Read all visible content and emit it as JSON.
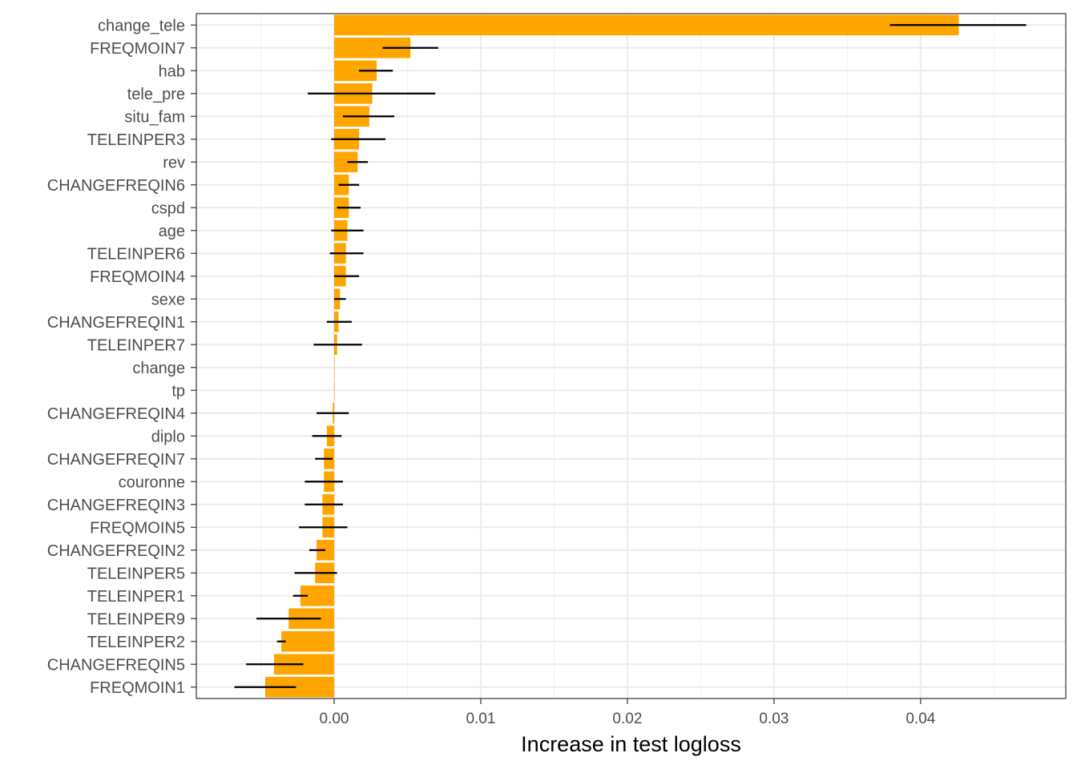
{
  "chart_data": {
    "type": "bar",
    "orientation": "horizontal",
    "title": "",
    "xlabel": "Increase in test logloss",
    "ylabel": "",
    "xlim": [
      -0.0094,
      0.0499
    ],
    "x_ticks": [
      0.0,
      0.01,
      0.02,
      0.03,
      0.04
    ],
    "x_tick_labels": [
      "0.00",
      "0.01",
      "0.02",
      "0.03",
      "0.04"
    ],
    "grid": true,
    "bar_color": "#FFA500",
    "error_bar_color": "#000000",
    "categories": [
      "change_tele",
      "FREQMOIN7",
      "hab",
      "tele_pre",
      "situ_fam",
      "TELEINPER3",
      "rev",
      "CHANGEFREQIN6",
      "cspd",
      "age",
      "TELEINPER6",
      "FREQMOIN4",
      "sexe",
      "CHANGEFREQIN1",
      "TELEINPER7",
      "change",
      "tp",
      "CHANGEFREQIN4",
      "diplo",
      "CHANGEFREQIN7",
      "couronne",
      "CHANGEFREQIN3",
      "FREQMOIN5",
      "CHANGEFREQIN2",
      "TELEINPER5",
      "TELEINPER1",
      "TELEINPER9",
      "TELEINPER2",
      "CHANGEFREQIN5",
      "FREQMOIN1"
    ],
    "values": [
      0.0426,
      0.0052,
      0.0029,
      0.0026,
      0.0024,
      0.0017,
      0.0016,
      0.001,
      0.001,
      0.0009,
      0.0008,
      0.0008,
      0.0004,
      0.0003,
      0.0002,
      0.0,
      0.0,
      -0.0001,
      -0.0005,
      -0.0007,
      -0.0007,
      -0.0008,
      -0.0008,
      -0.0012,
      -0.0013,
      -0.0023,
      -0.0031,
      -0.0036,
      -0.0041,
      -0.0047
    ],
    "error_low": [
      0.0379,
      0.0033,
      0.0017,
      -0.0018,
      0.0006,
      -0.0002,
      0.0009,
      0.0003,
      0.0002,
      -0.0002,
      -0.0003,
      0.0,
      0.0,
      -0.0005,
      -0.0014,
      0.0,
      0.0,
      -0.0012,
      -0.0015,
      -0.0013,
      -0.002,
      -0.002,
      -0.0024,
      -0.0017,
      -0.0027,
      -0.0028,
      -0.0053,
      -0.0039,
      -0.006,
      -0.0068
    ],
    "error_high": [
      0.0472,
      0.0071,
      0.004,
      0.0069,
      0.0041,
      0.0035,
      0.0023,
      0.0017,
      0.0018,
      0.002,
      0.002,
      0.0017,
      0.0008,
      0.0012,
      0.0019,
      0.0,
      0.0,
      0.001,
      0.0005,
      -0.0001,
      0.0006,
      0.0006,
      0.0009,
      -0.0006,
      0.0002,
      -0.0018,
      -0.0009,
      -0.0033,
      -0.0021,
      -0.0026
    ]
  }
}
